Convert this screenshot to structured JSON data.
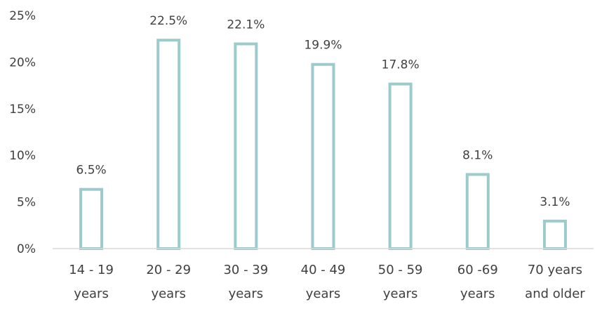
{
  "chart_data": {
    "type": "bar",
    "title": "",
    "xlabel": "",
    "ylabel": "",
    "categories": [
      [
        "14 - 19",
        "years"
      ],
      [
        "20 - 29",
        "years"
      ],
      [
        "30 - 39",
        "years"
      ],
      [
        "40 - 49",
        "years"
      ],
      [
        "50 - 59",
        "years"
      ],
      [
        "60 -69",
        "years"
      ],
      [
        "70 years",
        "and older"
      ]
    ],
    "values": [
      6.5,
      22.5,
      22.1,
      19.9,
      17.8,
      8.1,
      3.1
    ],
    "value_labels": [
      "6.5%",
      "22.5%",
      "22.1%",
      "19.9%",
      "17.8%",
      "8.1%",
      "3.1%"
    ],
    "ylim": [
      0,
      25
    ],
    "yticks": [
      0,
      5,
      10,
      15,
      20,
      25
    ],
    "ytick_labels": [
      "0%",
      "5%",
      "10%",
      "15%",
      "20%",
      "25%"
    ],
    "grid": false,
    "legend": "none",
    "colors": {
      "bar_stroke": "#9dcbcb",
      "bar_fill": "#ffffff",
      "axis": "#d9d9d9",
      "text": "#404040"
    }
  }
}
